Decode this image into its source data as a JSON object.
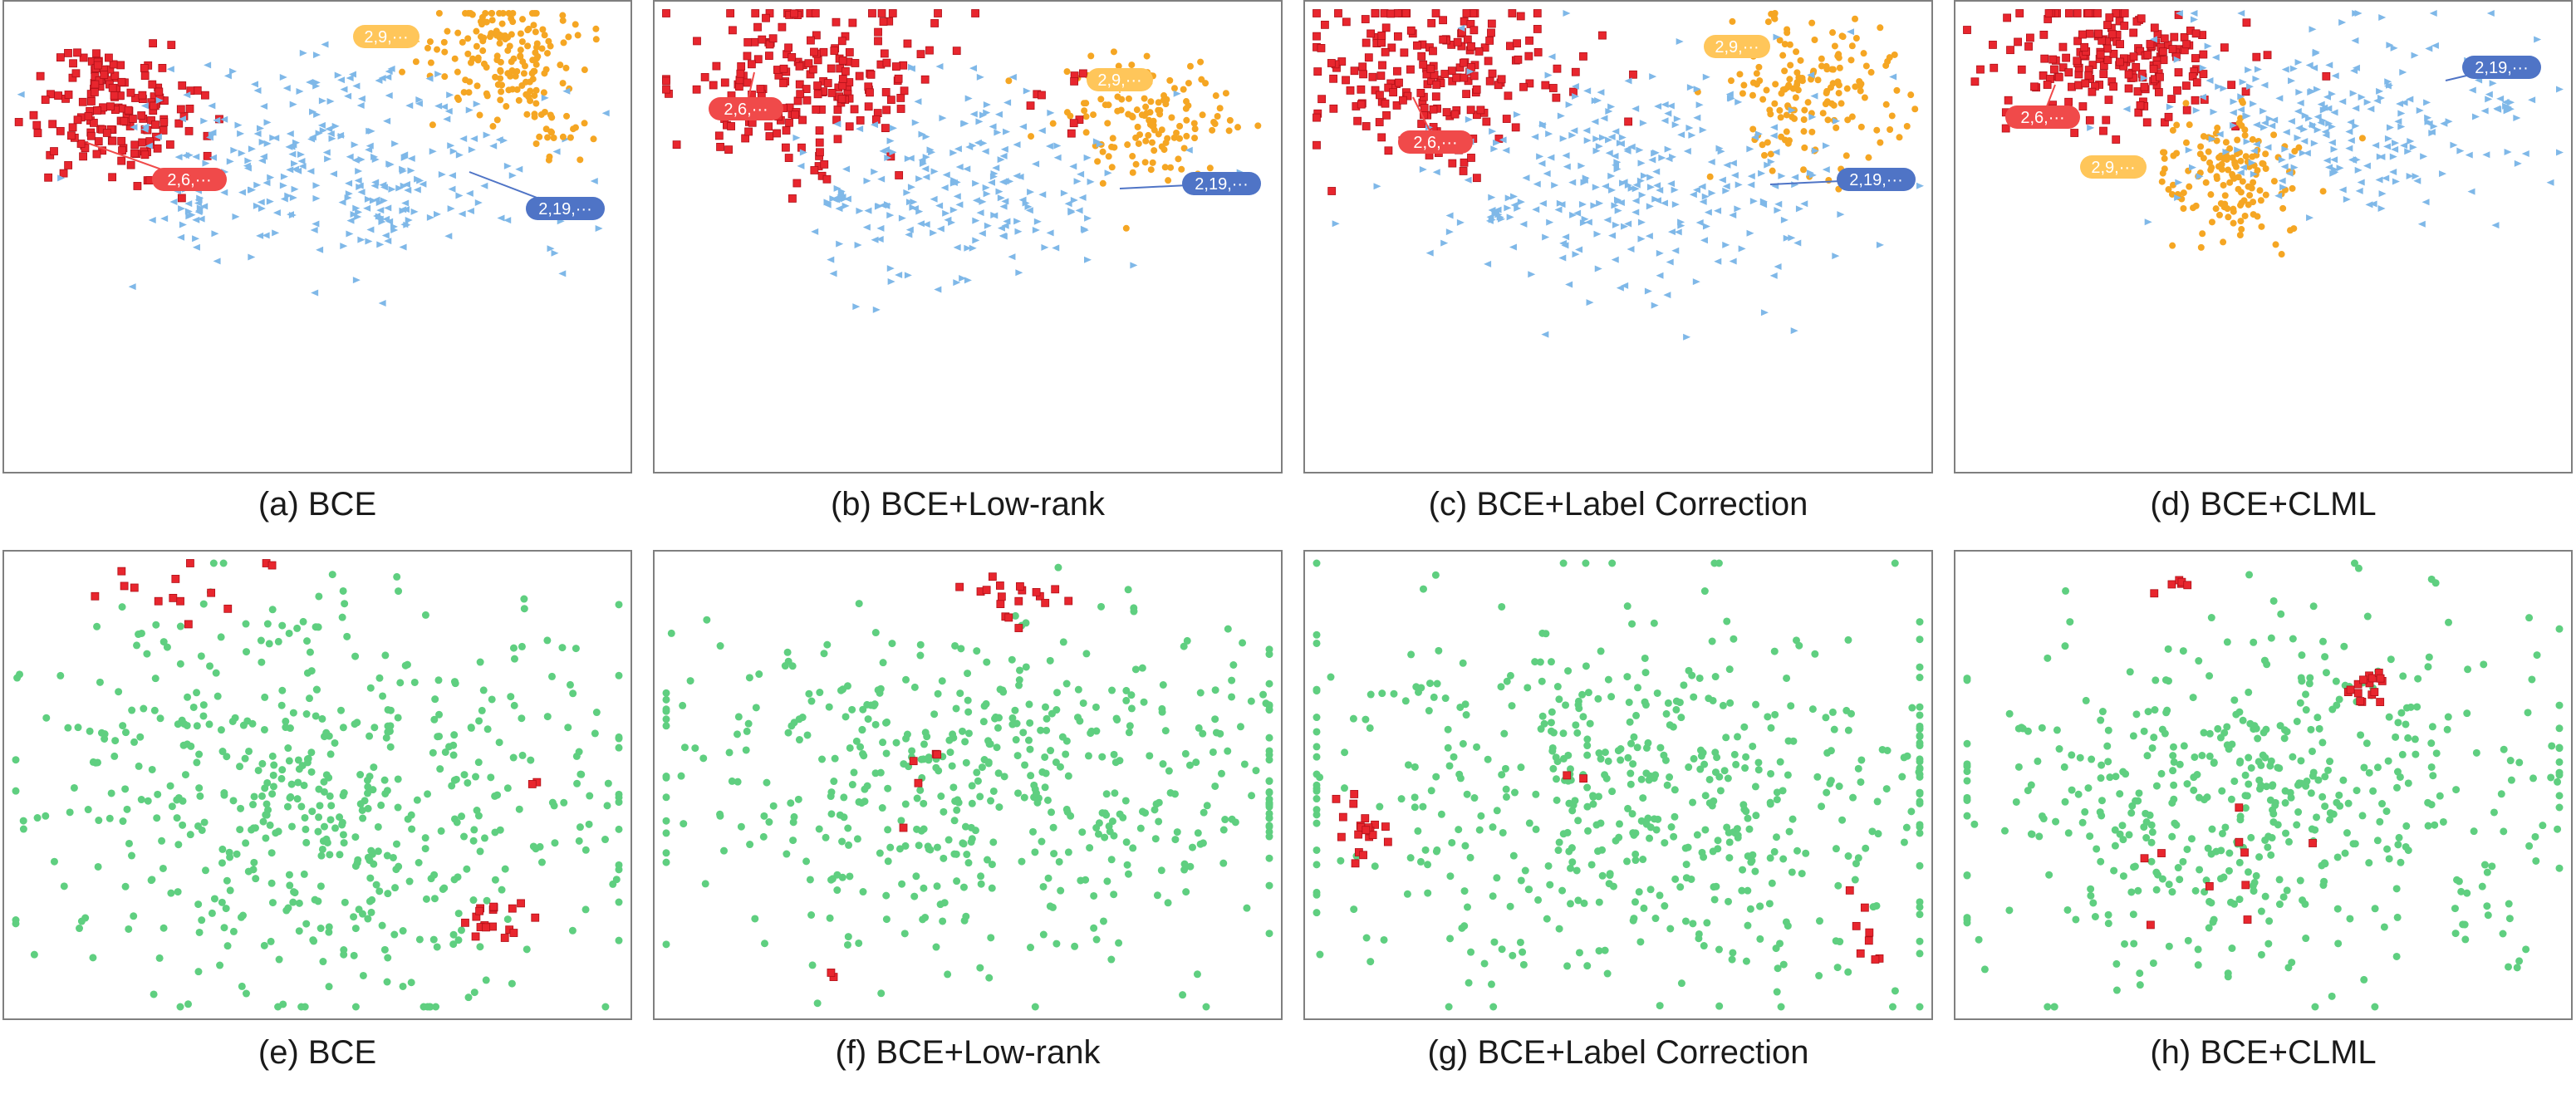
{
  "figure": {
    "panels": [
      {
        "id": "a",
        "caption": "(a) BCE",
        "callouts": [
          {
            "text": "2,6,···",
            "color": "#f04a4a"
          },
          {
            "text": "2,9,···",
            "color": "#ffc65a"
          },
          {
            "text": "2,19,···",
            "color": "#4f74c6"
          }
        ]
      },
      {
        "id": "b",
        "caption": "(b) BCE+Low-rank",
        "callouts": [
          {
            "text": "2,6,···",
            "color": "#f04a4a"
          },
          {
            "text": "2,9,···",
            "color": "#ffc65a"
          },
          {
            "text": "2,19,···",
            "color": "#4f74c6"
          }
        ]
      },
      {
        "id": "c",
        "caption": "(c) BCE+Label Correction",
        "callouts": [
          {
            "text": "2,6,···",
            "color": "#f04a4a"
          },
          {
            "text": "2,9,···",
            "color": "#ffc65a"
          },
          {
            "text": "2,19,···",
            "color": "#4f74c6"
          }
        ]
      },
      {
        "id": "d",
        "caption": "(d) BCE+CLML",
        "callouts": [
          {
            "text": "2,6,···",
            "color": "#f04a4a"
          },
          {
            "text": "2,9,···",
            "color": "#ffc65a"
          },
          {
            "text": "2,19,···",
            "color": "#4f74c6"
          }
        ]
      },
      {
        "id": "e",
        "caption": "(e) BCE",
        "callouts": []
      },
      {
        "id": "f",
        "caption": "(f) BCE+Low-rank",
        "callouts": []
      },
      {
        "id": "g",
        "caption": "(g) BCE+Label Correction",
        "callouts": []
      },
      {
        "id": "h",
        "caption": "(h) BCE+CLML",
        "callouts": []
      }
    ]
  },
  "chart_data": [
    {
      "type": "scatter",
      "panel": "a",
      "series_colors": {
        "red_square": "#e8262e",
        "orange_dot": "#f5a623",
        "blue_triangle": "#7fb8e8"
      }
    },
    {
      "type": "scatter",
      "panel": "b",
      "series_colors": {
        "red_square": "#e8262e",
        "orange_dot": "#f5a623",
        "blue_triangle": "#7fb8e8"
      }
    },
    {
      "type": "scatter",
      "panel": "c",
      "series_colors": {
        "red_square": "#e8262e",
        "orange_dot": "#f5a623",
        "blue_triangle": "#7fb8e8"
      }
    },
    {
      "type": "scatter",
      "panel": "d",
      "series_colors": {
        "red_square": "#e8262e",
        "orange_dot": "#f5a623",
        "blue_triangle": "#7fb8e8"
      }
    },
    {
      "type": "scatter",
      "panel": "e",
      "series_colors": {
        "green_dot": "#5fcf80",
        "red_square": "#e8262e"
      }
    },
    {
      "type": "scatter",
      "panel": "f",
      "series_colors": {
        "green_dot": "#5fcf80",
        "red_square": "#e8262e"
      }
    },
    {
      "type": "scatter",
      "panel": "g",
      "series_colors": {
        "green_dot": "#5fcf80",
        "red_square": "#e8262e"
      }
    },
    {
      "type": "scatter",
      "panel": "h",
      "series_colors": {
        "green_dot": "#5fcf80",
        "red_square": "#e8262e"
      }
    }
  ]
}
